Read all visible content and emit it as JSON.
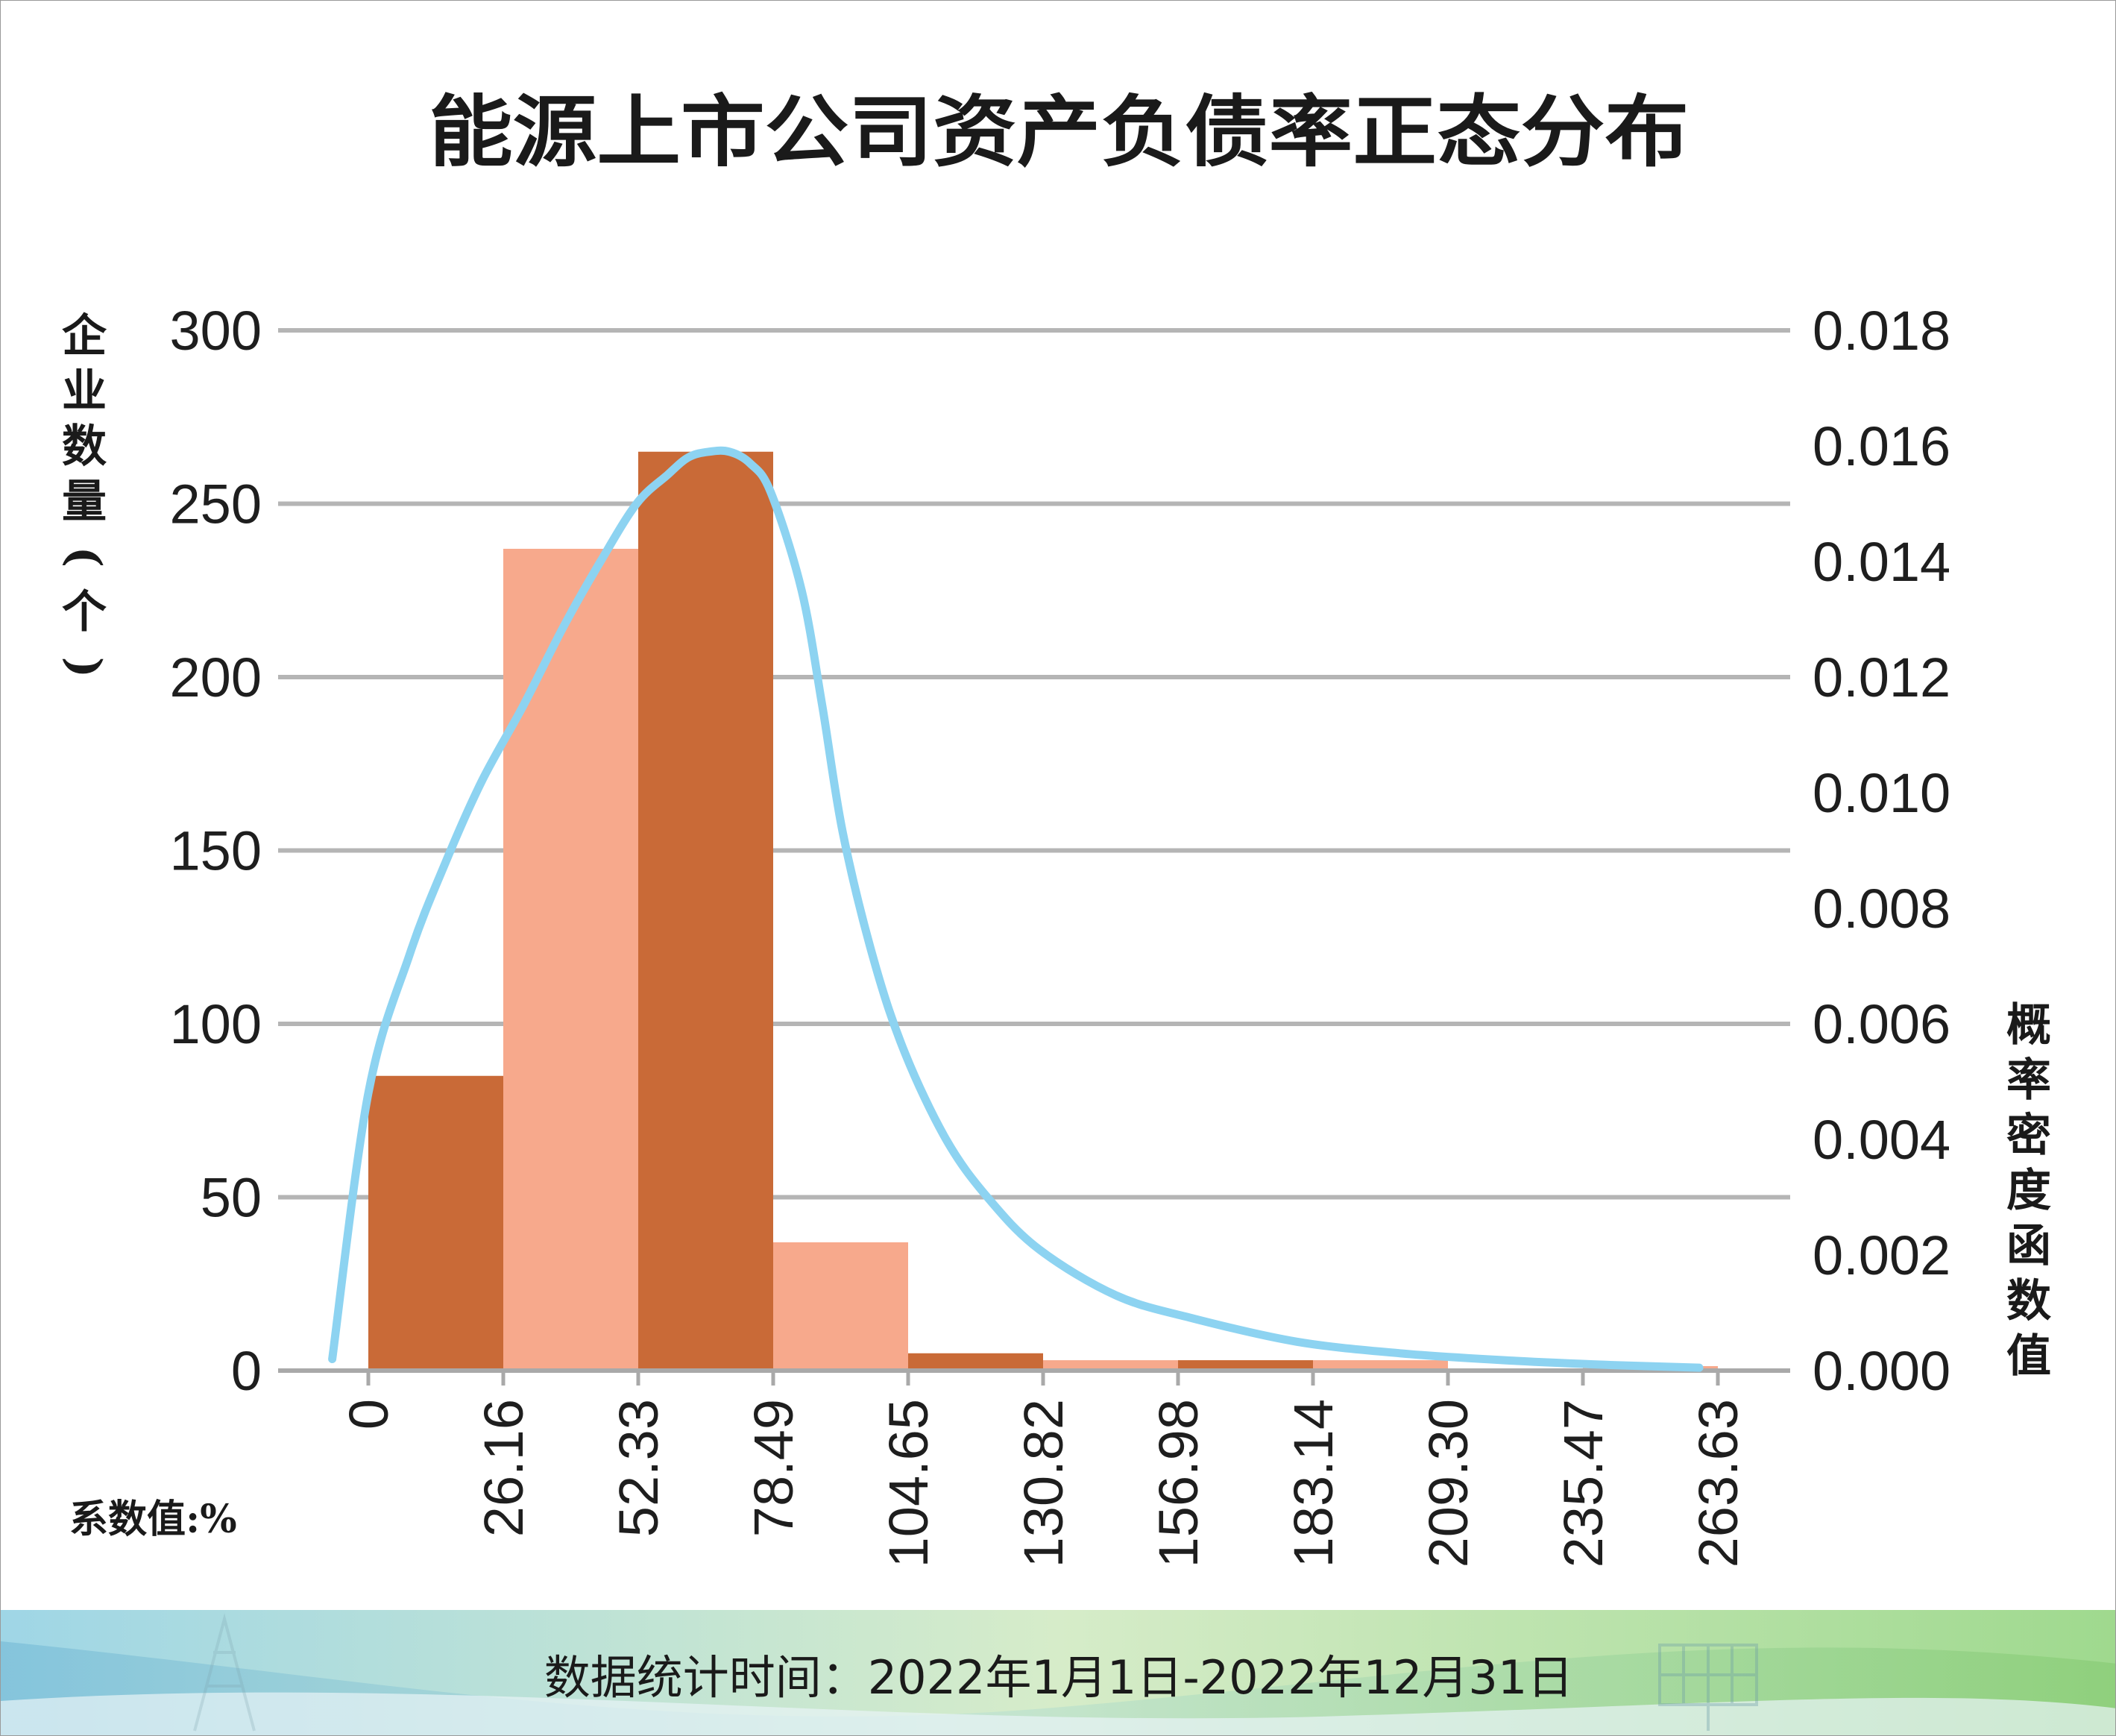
{
  "chart_data": {
    "type": "bar",
    "title": "能源上市公司资产负债率正态分布",
    "ylabel": "企业数量(个)",
    "y2label": "概率密度函数值",
    "xlabel_note": "系数值:%",
    "footer": "数据统计时间：2022年1月1日-2022年12月31日",
    "ylim": [
      0,
      300
    ],
    "y2lim": [
      0,
      0.018
    ],
    "yticks": [
      "0",
      "50",
      "100",
      "150",
      "200",
      "250",
      "300"
    ],
    "y2ticks": [
      "0.000",
      "0.002",
      "0.004",
      "0.006",
      "0.008",
      "0.010",
      "0.012",
      "0.014",
      "0.016",
      "0.018"
    ],
    "bin_edges": [
      "0",
      "26.16",
      "52.33",
      "78.49",
      "104.65",
      "130.82",
      "156.98",
      "183.14",
      "209.30",
      "235.47",
      "263.63"
    ],
    "values": [
      85,
      237,
      265,
      37,
      5,
      3,
      3,
      3,
      0,
      1
    ],
    "curve_x": [
      -7,
      0,
      8,
      15,
      22,
      30,
      38,
      45,
      52,
      58,
      62,
      66,
      70,
      74,
      78,
      84,
      88,
      92,
      98,
      104,
      112,
      120,
      130,
      145,
      160,
      180,
      200,
      220,
      240,
      258
    ],
    "curve_y": [
      0.0002,
      0.0048,
      0.0072,
      0.0088,
      0.0102,
      0.0115,
      0.0129,
      0.014,
      0.015,
      0.0155,
      0.0158,
      0.0159,
      0.0159,
      0.0157,
      0.0152,
      0.0135,
      0.0115,
      0.0093,
      0.0071,
      0.0055,
      0.004,
      0.003,
      0.0021,
      0.0013,
      0.0009,
      0.0005,
      0.0003,
      0.00018,
      0.0001,
      5e-05
    ],
    "grid": true,
    "colors": {
      "bar_dark": "#c96a37",
      "bar_light": "#f7a98c",
      "curve": "#8dd3f1",
      "grid": "#b5b5b5",
      "axis": "#a9a9a9"
    }
  }
}
